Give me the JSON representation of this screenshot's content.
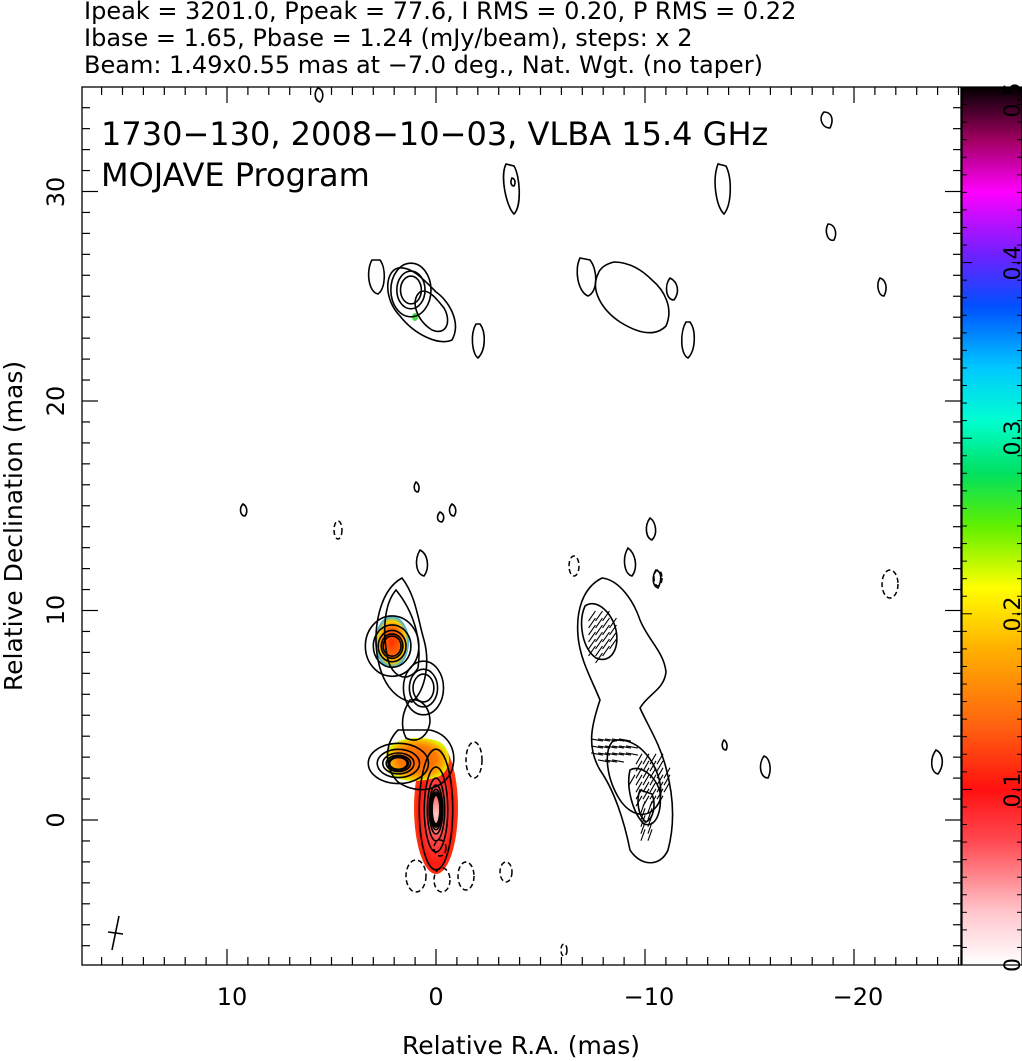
{
  "header": {
    "line1": "Ipeak = 3201.0, Ppeak = 77.6, I RMS = 0.20, P RMS = 0.22",
    "line2": "Ibase = 1.65, Pbase = 1.24 (mJy/beam), steps: x 2",
    "line3": "Beam: 1.49x0.55 mas at −7.0 deg., Nat. Wgt. (no taper)"
  },
  "plot_titles": {
    "line1": "1730−130, 2008−10−03, VLBA 15.4 GHz",
    "line2": "MOJAVE Program"
  },
  "axes": {
    "xlabel": "Relative R.A. (mas)",
    "ylabel": "Relative Declination (mas)",
    "x_ticks": [
      "10",
      "0",
      "−10",
      "−20"
    ],
    "y_ticks": [
      "0",
      "10",
      "20",
      "30"
    ],
    "colorbar_ticks": [
      "0",
      "0.1",
      "0.2",
      "0.3",
      "0.4",
      "0.5"
    ]
  },
  "chart_data": {
    "type": "heatmap",
    "title": "1730−130, 2008−10−03, VLBA 15.4 GHz",
    "subtitle": "MOJAVE Program",
    "xlabel": "Relative R.A. (mas)",
    "ylabel": "Relative Declination (mas)",
    "xlim": [
      17,
      -25
    ],
    "ylim": [
      -7,
      35
    ],
    "x_ticks": [
      10,
      0,
      -10,
      -20
    ],
    "y_ticks": [
      0,
      10,
      20,
      30
    ],
    "colorbar": {
      "range": [
        0,
        0.5
      ],
      "ticks": [
        0,
        0.1,
        0.2,
        0.3,
        0.4,
        0.5
      ]
    },
    "stats": {
      "Ipeak": 3201.0,
      "Ppeak": 77.6,
      "I_RMS": 0.2,
      "P_RMS": 0.22,
      "Ibase": 1.65,
      "Pbase": 1.24,
      "unit": "mJy/beam",
      "steps": "x 2"
    },
    "beam": {
      "major_mas": 1.49,
      "minor_mas": 0.55,
      "pa_deg": -7.0
    },
    "total_intensity_components": [
      {
        "ra": 0.0,
        "dec": 0.5,
        "sigma_ra": 0.5,
        "sigma_dec": 1.8,
        "levels": 9
      },
      {
        "ra": 1.8,
        "dec": 2.7,
        "sigma_ra": 0.9,
        "sigma_dec": 0.6,
        "levels": 6
      },
      {
        "ra": 2.1,
        "dec": 8.3,
        "sigma_ra": 0.8,
        "sigma_dec": 0.9,
        "levels": 5
      },
      {
        "ra": 0.6,
        "dec": 6.3,
        "sigma_ra": 0.6,
        "sigma_dec": 0.8,
        "levels": 3
      },
      {
        "ra": 1.2,
        "dec": 25.3,
        "sigma_ra": 0.6,
        "sigma_dec": 0.8,
        "levels": 3
      }
    ],
    "fractional_polarization_regions": [
      {
        "ra": 0.0,
        "dec": 1.0,
        "fpol": 0.07
      },
      {
        "ra": 1.8,
        "dec": 3.0,
        "fpol": 0.13
      },
      {
        "ra": 2.0,
        "dec": 8.3,
        "fpol": 0.11
      }
    ]
  }
}
